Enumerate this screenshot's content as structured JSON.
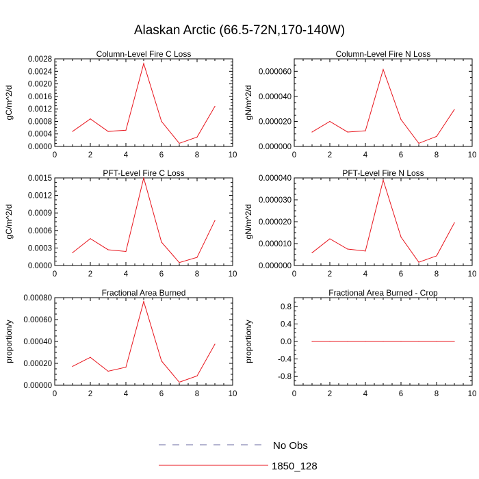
{
  "figure": {
    "title": "Alaskan Arctic (66.5-72N,170-140W)",
    "line_color": "#e8141c",
    "obs_color": "#6a6aa0",
    "legend": [
      {
        "label": "No Obs",
        "style": "dashed"
      },
      {
        "label": "1850_128",
        "style": "solid"
      }
    ]
  },
  "chart_data": [
    {
      "type": "line",
      "title": "Column-Level Fire C Loss",
      "ylabel": "gC/m^2/d",
      "xlim": [
        0,
        10
      ],
      "ylim": [
        0,
        0.0028
      ],
      "xticks": [
        0,
        2,
        4,
        6,
        8,
        10
      ],
      "xtick_labels": [
        "0",
        "2",
        "4",
        "6",
        "8",
        "10"
      ],
      "yticks": [
        0,
        0.0004,
        0.0008,
        0.0012,
        0.0016,
        0.002,
        0.0024,
        0.0028
      ],
      "ytick_labels": [
        "0.0000",
        "0.0004",
        "0.0008",
        "0.0012",
        "0.0016",
        "0.0020",
        "0.0024",
        "0.0028"
      ],
      "series": [
        {
          "name": "1850_128",
          "x": [
            1,
            2,
            3,
            4,
            5,
            6,
            7,
            8,
            9
          ],
          "values": [
            0.00048,
            0.00088,
            0.00048,
            0.00052,
            0.00265,
            0.0008,
            0.0001,
            0.0003,
            0.00128
          ]
        }
      ]
    },
    {
      "type": "line",
      "title": "Column-Level Fire N Loss",
      "ylabel": "gN/m^2/d",
      "xlim": [
        0,
        10
      ],
      "ylim": [
        0,
        7e-05
      ],
      "xticks": [
        0,
        2,
        4,
        6,
        8,
        10
      ],
      "xtick_labels": [
        "0",
        "2",
        "4",
        "6",
        "8",
        "10"
      ],
      "yticks": [
        0,
        2e-05,
        4e-05,
        6e-05
      ],
      "ytick_labels": [
        "0.000000",
        "0.000020",
        "0.000040",
        "0.000060"
      ],
      "series": [
        {
          "name": "1850_128",
          "x": [
            1,
            2,
            3,
            4,
            5,
            6,
            7,
            8,
            9
          ],
          "values": [
            1.15e-05,
            2e-05,
            1.15e-05,
            1.25e-05,
            6.15e-05,
            2.15e-05,
            2.5e-06,
            8e-06,
            2.95e-05
          ]
        }
      ]
    },
    {
      "type": "line",
      "title": "PFT-Level Fire C Loss",
      "ylabel": "gC/m^2/d",
      "xlim": [
        0,
        10
      ],
      "ylim": [
        0,
        0.0015
      ],
      "xticks": [
        0,
        2,
        4,
        6,
        8,
        10
      ],
      "xtick_labels": [
        "0",
        "2",
        "4",
        "6",
        "8",
        "10"
      ],
      "yticks": [
        0,
        0.0003,
        0.0006,
        0.0009,
        0.0012,
        0.0015
      ],
      "ytick_labels": [
        "0.0000",
        "0.0003",
        "0.0006",
        "0.0009",
        "0.0012",
        "0.0015"
      ],
      "series": [
        {
          "name": "1850_128",
          "x": [
            1,
            2,
            3,
            4,
            5,
            6,
            7,
            8,
            9
          ],
          "values": [
            0.00022,
            0.00046,
            0.00027,
            0.00024,
            0.0015,
            0.0004,
            5e-05,
            0.00014,
            0.00077
          ]
        }
      ]
    },
    {
      "type": "line",
      "title": "PFT-Level Fire N Loss",
      "ylabel": "gN/m^2/d",
      "xlim": [
        0,
        10
      ],
      "ylim": [
        0,
        4e-05
      ],
      "xticks": [
        0,
        2,
        4,
        6,
        8,
        10
      ],
      "xtick_labels": [
        "0",
        "2",
        "4",
        "6",
        "8",
        "10"
      ],
      "yticks": [
        0,
        1e-05,
        2e-05,
        3e-05,
        4e-05
      ],
      "ytick_labels": [
        "0.000000",
        "0.000010",
        "0.000020",
        "0.000030",
        "0.000040"
      ],
      "series": [
        {
          "name": "1850_128",
          "x": [
            1,
            2,
            3,
            4,
            5,
            6,
            7,
            8,
            9
          ],
          "values": [
            5.8e-06,
            1.22e-05,
            7.5e-06,
            6.6e-06,
            3.9e-05,
            1.3e-05,
            1.5e-06,
            4.4e-06,
            1.95e-05
          ]
        }
      ]
    },
    {
      "type": "line",
      "title": "Fractional Area Burned",
      "ylabel": "proportion/y",
      "xlim": [
        0,
        10
      ],
      "ylim": [
        0,
        0.0008
      ],
      "xticks": [
        0,
        2,
        4,
        6,
        8,
        10
      ],
      "xtick_labels": [
        "0",
        "2",
        "4",
        "6",
        "8",
        "10"
      ],
      "yticks": [
        0,
        0.0002,
        0.0004,
        0.0006,
        0.0008
      ],
      "ytick_labels": [
        "0.00000",
        "0.00020",
        "0.00040",
        "0.00060",
        "0.00080"
      ],
      "series": [
        {
          "name": "1850_128",
          "x": [
            1,
            2,
            3,
            4,
            5,
            6,
            7,
            8,
            9
          ],
          "values": [
            0.000172,
            0.000255,
            0.000128,
            0.000165,
            0.000765,
            0.000222,
            2.8e-05,
            8.5e-05,
            0.000375
          ]
        }
      ]
    },
    {
      "type": "line",
      "title": "Fractional Area Burned - Crop",
      "ylabel": "proportion/y",
      "xlim": [
        0,
        10
      ],
      "ylim": [
        -1,
        1
      ],
      "xticks": [
        0,
        2,
        4,
        6,
        8,
        10
      ],
      "xtick_labels": [
        "0",
        "2",
        "4",
        "6",
        "8",
        "10"
      ],
      "yticks": [
        -0.8,
        -0.4,
        0,
        0.4,
        0.8
      ],
      "ytick_labels": [
        "-0.8",
        "-0.4",
        "0.0",
        "0.4",
        "0.8"
      ],
      "series": [
        {
          "name": "1850_128",
          "x": [
            1,
            2,
            3,
            4,
            5,
            6,
            7,
            8,
            9
          ],
          "values": [
            0,
            0,
            0,
            0,
            0,
            0,
            0,
            0,
            0
          ]
        }
      ]
    }
  ]
}
